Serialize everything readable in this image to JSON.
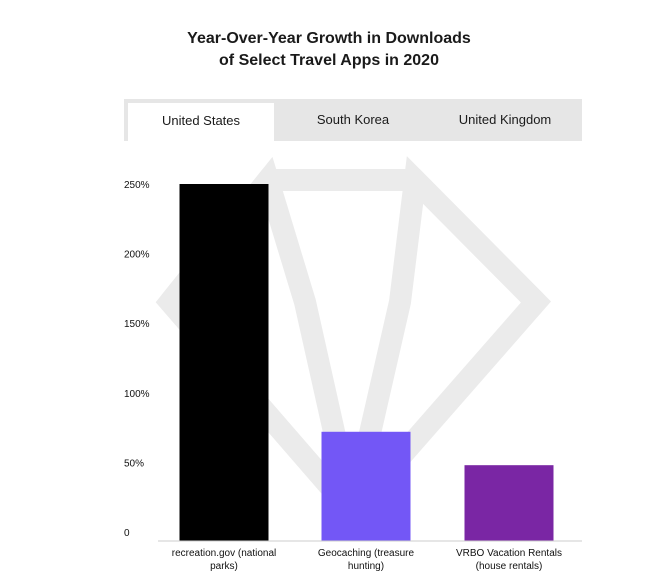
{
  "title_lines": [
    "Year-Over-Year Growth in Downloads",
    "of Select Travel Apps in 2020"
  ],
  "tabs": [
    {
      "label": "United States",
      "active": true
    },
    {
      "label": "South Korea",
      "active": false
    },
    {
      "label": "United Kingdom",
      "active": false
    }
  ],
  "watermark": "gem-watermark-icon",
  "chart_data": {
    "type": "bar",
    "title": "Year-Over-Year Growth in Downloads of Select Travel Apps in 2020",
    "xlabel": "",
    "ylabel": "",
    "ylim": [
      0,
      250
    ],
    "yticks": [
      0,
      50,
      100,
      150,
      200,
      250
    ],
    "ytick_labels": [
      "0",
      "50%",
      "100%",
      "150%",
      "200%",
      "250%"
    ],
    "grid": false,
    "categories": [
      [
        "recreation.gov (national",
        "parks)"
      ],
      [
        "Geocaching (treasure",
        "hunting)"
      ],
      [
        "VRBO Vacation Rentals",
        "(house rentals)"
      ]
    ],
    "values": [
      250,
      72,
      48
    ],
    "colors": [
      "#000000",
      "#7357f6",
      "#7a26a4"
    ]
  }
}
